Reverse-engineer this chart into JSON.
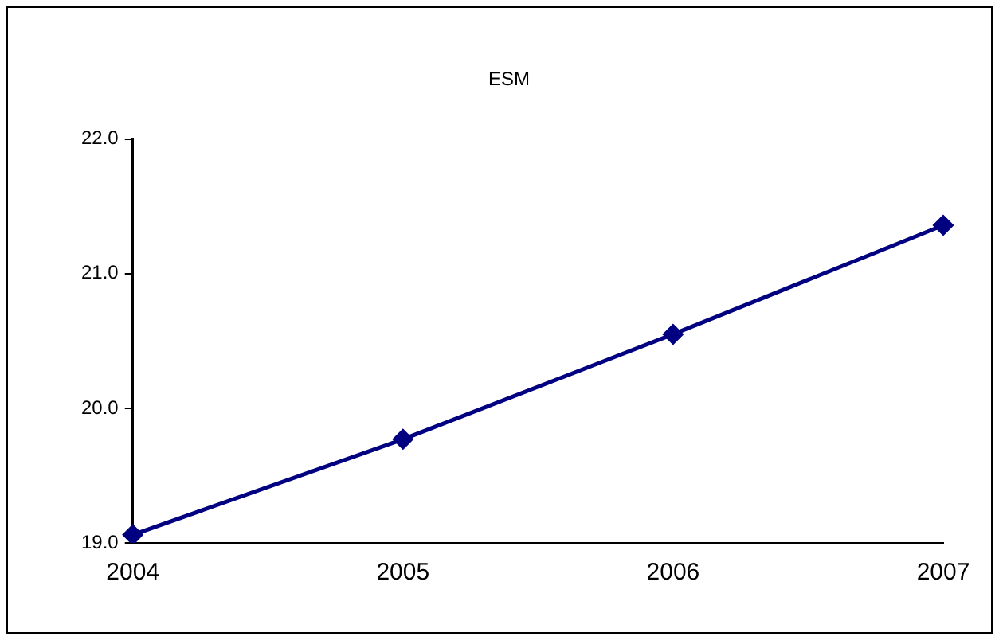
{
  "chart_data": {
    "type": "line",
    "title": "ESM",
    "categories": [
      "2004",
      "2005",
      "2006",
      "2007"
    ],
    "series": [
      {
        "color": "#000080",
        "values": [
          19.06,
          19.77,
          20.55,
          21.36
        ]
      }
    ],
    "ylim": [
      19,
      22
    ],
    "yticks": [
      {
        "value": 19,
        "label": "19.0"
      },
      {
        "value": 20,
        "label": "20.0"
      },
      {
        "value": 21,
        "label": "21.0"
      },
      {
        "value": 22,
        "label": "22.0"
      }
    ],
    "grid": false,
    "legend": false,
    "marker": "diamond",
    "line_style": "solid"
  }
}
